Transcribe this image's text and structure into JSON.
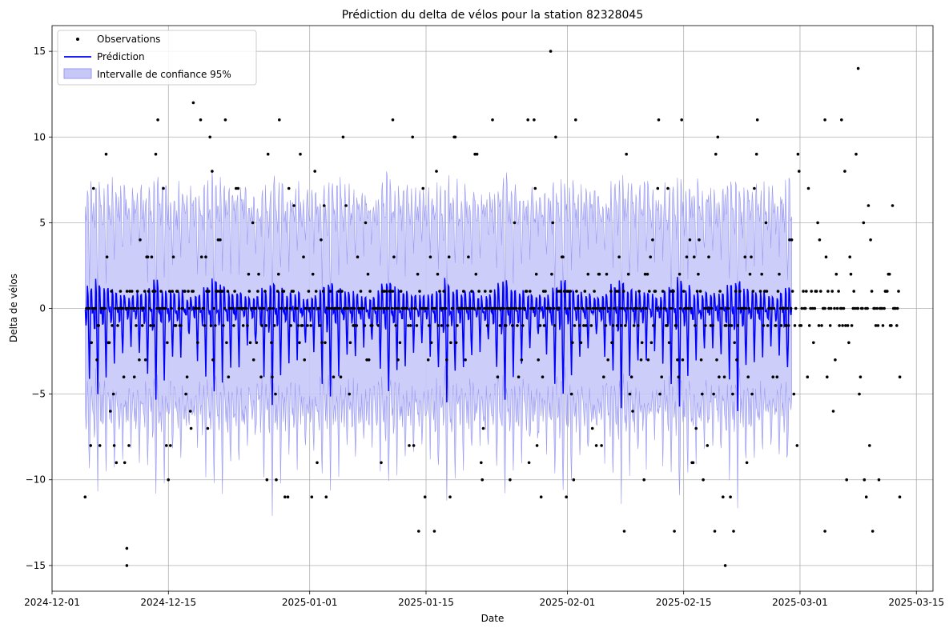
{
  "chart_data": {
    "type": "line",
    "title": "Prédiction du delta de vélos pour la station 82328045",
    "xlabel": "Date",
    "ylabel": "Delta de vélos",
    "xlim": [
      "2024-12-01",
      "2025-03-17"
    ],
    "ylim": [
      -16.5,
      16.5
    ],
    "x_ticks": [
      "2024-12-01",
      "2024-12-15",
      "2025-01-01",
      "2025-01-15",
      "2025-02-01",
      "2025-02-15",
      "2025-03-01",
      "2025-03-15"
    ],
    "y_ticks": [
      -15,
      -10,
      -5,
      0,
      5,
      10,
      15
    ],
    "grid": true,
    "legend": {
      "position": "top-left",
      "entries": [
        "Observations",
        "Prédiction",
        "Intervalle de confiance 95%"
      ]
    },
    "colors": {
      "observations": "#000000",
      "prediction": "#0000ff",
      "interval_fill": "#c8c8f8",
      "interval_edge": "#9a9af2",
      "grid": "#b0b0b0"
    },
    "series": [
      {
        "name": "Prédiction",
        "kind": "line",
        "x_start": "2024-12-05",
        "x_end": "2025-02-28",
        "period_days": 1,
        "daily_profile": [
          0,
          -0.6,
          -1.2,
          -1.4,
          -1.0,
          0.2,
          1.5,
          2.5,
          1.0,
          -1.0,
          -2.5,
          -4.0,
          -5.0,
          -4.2,
          -2.0,
          0.5,
          1.5,
          2.2,
          1.4,
          0.4,
          -0.2,
          -0.5,
          -0.3,
          0
        ],
        "profile_resolution_hours": 1
      },
      {
        "name": "Intervalle de confiance 95%",
        "kind": "band",
        "x_start": "2024-12-05",
        "x_end": "2025-02-28",
        "half_width": 5.5
      },
      {
        "name": "Observations",
        "kind": "scatter",
        "x_start": "2024-12-05",
        "x_end": "2025-03-13",
        "typical_values": [
          -13,
          -11,
          -10,
          -9,
          -8,
          -7,
          -6,
          -5,
          -4,
          -3,
          -2,
          -1,
          0,
          1,
          2,
          3,
          4,
          5,
          6,
          7,
          8,
          9,
          10,
          11
        ],
        "extreme_points": [
          {
            "x": "2024-12-10",
            "y": -15
          },
          {
            "x": "2024-12-10",
            "y": -14
          },
          {
            "x": "2024-12-18",
            "y": 12
          },
          {
            "x": "2025-01-30",
            "y": 15
          },
          {
            "x": "2025-02-20",
            "y": -15
          },
          {
            "x": "2025-03-08",
            "y": 14
          },
          {
            "x": "2025-03-04",
            "y": -13
          },
          {
            "x": "2025-01-16",
            "y": -13
          },
          {
            "x": "2025-03-13",
            "y": -11
          },
          {
            "x": "2025-01-11",
            "y": 11
          },
          {
            "x": "2025-02-02",
            "y": 11
          },
          {
            "x": "2025-03-04",
            "y": 11
          },
          {
            "x": "2025-03-06",
            "y": 11
          },
          {
            "x": "2025-01-28",
            "y": 11
          },
          {
            "x": "2025-01-23",
            "y": 11
          }
        ]
      }
    ]
  }
}
